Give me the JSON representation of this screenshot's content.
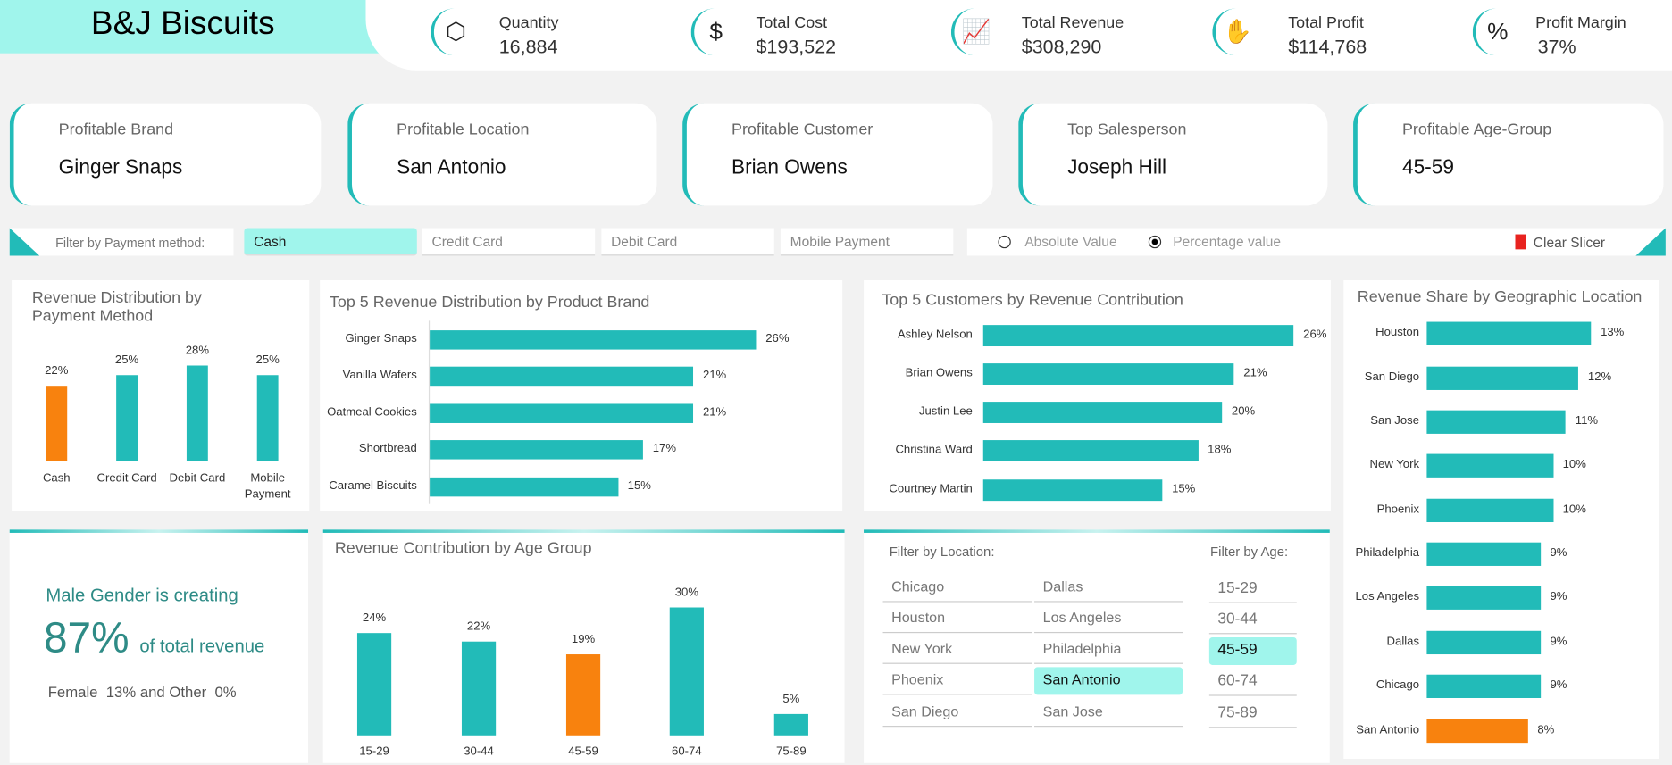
{
  "header": {
    "title": "B&J Biscuits"
  },
  "kpis": [
    {
      "icon": "boxes-icon",
      "label": "Quantity",
      "value": "16,884"
    },
    {
      "icon": "dollar-icon",
      "label": "Total Cost",
      "value": "$193,522"
    },
    {
      "icon": "growth-chart-icon",
      "label": "Total Revenue",
      "value": "$308,290"
    },
    {
      "icon": "money-hand-icon",
      "label": "Total Profit",
      "value": "$114,768"
    },
    {
      "icon": "percent-pie-icon",
      "label": "Profit Margin",
      "value": "37%"
    }
  ],
  "cards": [
    {
      "label": "Profitable Brand",
      "value": "Ginger Snaps"
    },
    {
      "label": "Profitable Location",
      "value": "San Antonio"
    },
    {
      "label": "Profitable Customer",
      "value": "Brian Owens"
    },
    {
      "label": "Top Salesperson",
      "value": "Joseph Hill"
    },
    {
      "label": "Profitable Age-Group",
      "value": "45-59"
    }
  ],
  "payment_filter": {
    "label": "Filter by Payment method:",
    "options": [
      "Cash",
      "Credit Card",
      "Debit Card",
      "Mobile Payment"
    ],
    "selected": "Cash"
  },
  "value_mode": {
    "options": [
      "Absolute Value",
      "Percentage value"
    ],
    "selected": "Percentage value",
    "clear_label": "Clear Slicer"
  },
  "colors": {
    "accent": "#22bbb8",
    "highlight": "#f8820e",
    "selected": "#a0f5ec"
  },
  "gender": {
    "line1": "Male Gender is creating",
    "big": "87%",
    "line2": "of total revenue",
    "line3": "Female  13% and Other  0%"
  },
  "location_filter": {
    "label": "Filter by Location:",
    "col1": [
      "Chicago",
      "Houston",
      "New York",
      "Phoenix",
      "San Diego"
    ],
    "col2": [
      "Dallas",
      "Los Angeles",
      "Philadelphia",
      "San Antonio",
      "San Jose"
    ],
    "selected": "San Antonio"
  },
  "age_filter": {
    "label": "Filter by Age:",
    "options": [
      "15-29",
      "30-44",
      "45-59",
      "60-74",
      "75-89"
    ],
    "selected": "45-59"
  },
  "chart_data": [
    {
      "type": "bar",
      "title": "Revenue Distribution by Payment Method",
      "categories": [
        "Cash",
        "Credit Card",
        "Debit Card",
        "Mobile Payment"
      ],
      "values": [
        22,
        25,
        28,
        25
      ],
      "labels": [
        "22%",
        "25%",
        "28%",
        "25%"
      ],
      "highlight": "Cash"
    },
    {
      "type": "bar",
      "orientation": "horizontal",
      "title": "Top 5 Revenue Distribution by Product Brand",
      "categories": [
        "Ginger Snaps",
        "Vanilla Wafers",
        "Oatmeal Cookies",
        "Shortbread",
        "Caramel Biscuits"
      ],
      "values": [
        26,
        21,
        21,
        17,
        15
      ],
      "labels": [
        "26%",
        "21%",
        "21%",
        "17%",
        "15%"
      ]
    },
    {
      "type": "bar",
      "orientation": "horizontal",
      "title": "Top 5 Customers by Revenue Contribution",
      "categories": [
        "Ashley Nelson",
        "Brian Owens",
        "Justin Lee",
        "Christina Ward",
        "Courtney Martin"
      ],
      "values": [
        26,
        21,
        20,
        18,
        15
      ],
      "labels": [
        "26%",
        "21%",
        "20%",
        "18%",
        "15%"
      ]
    },
    {
      "type": "bar",
      "orientation": "horizontal",
      "title": "Revenue Share by Geographic Location",
      "categories": [
        "Houston",
        "San Diego",
        "San Jose",
        "New York",
        "Phoenix",
        "Philadelphia",
        "Los Angeles",
        "Dallas",
        "Chicago",
        "San Antonio"
      ],
      "values": [
        13,
        12,
        11,
        10,
        10,
        9,
        9,
        9,
        9,
        8
      ],
      "labels": [
        "13%",
        "12%",
        "11%",
        "10%",
        "10%",
        "9%",
        "9%",
        "9%",
        "9%",
        "8%"
      ],
      "highlight": "San Antonio"
    },
    {
      "type": "bar",
      "title": "Revenue Contribution by Age Group",
      "categories": [
        "15-29",
        "30-44",
        "45-59",
        "60-74",
        "75-89"
      ],
      "values": [
        24,
        22,
        19,
        30,
        5
      ],
      "labels": [
        "24%",
        "22%",
        "19%",
        "30%",
        "5%"
      ],
      "highlight": "45-59"
    }
  ]
}
